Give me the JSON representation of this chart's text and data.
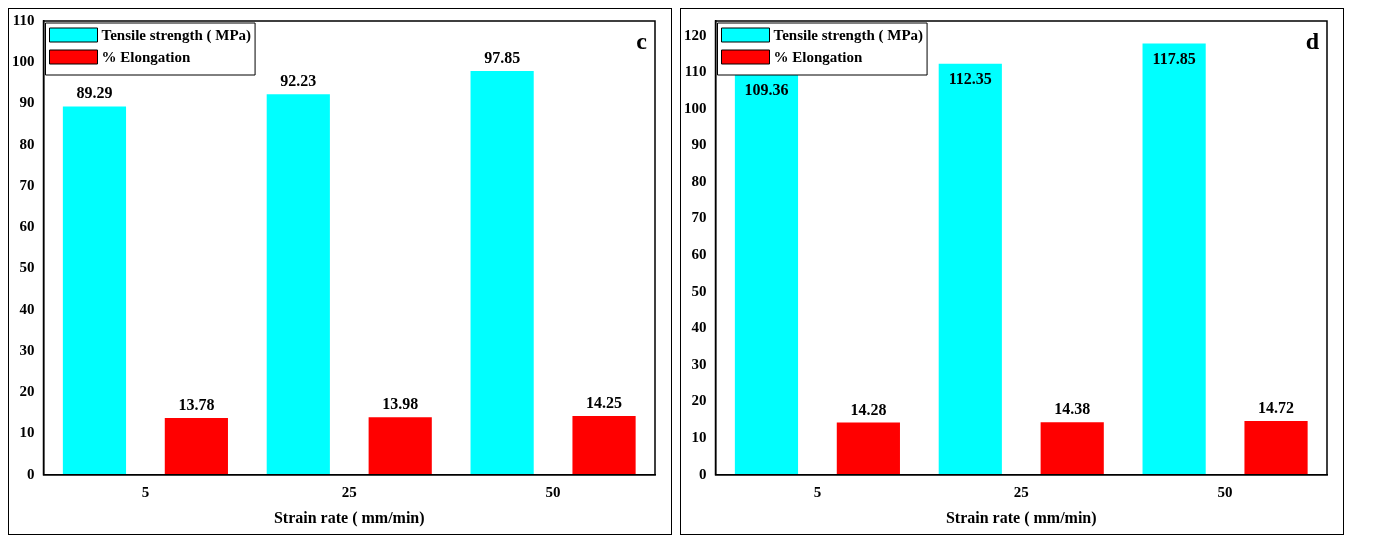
{
  "chart_data": [
    {
      "type": "bar",
      "categories": [
        "5",
        "25",
        "50"
      ],
      "xlabel": "Strain rate ( mm/min)",
      "annotations": [
        "c"
      ],
      "ylim": [
        0,
        110
      ],
      "yticks": [
        0,
        10,
        20,
        30,
        40,
        50,
        60,
        70,
        80,
        90,
        100,
        110
      ],
      "legend": "top left",
      "grid": false,
      "data_labels": true,
      "series": [
        {
          "name": "Tensile strength ( MPa)",
          "color": "#00ffff",
          "values": [
            89.29,
            92.23,
            97.85
          ]
        },
        {
          "name": "% Elongation",
          "color": "#ff0000",
          "values": [
            13.78,
            13.98,
            14.25
          ]
        }
      ]
    },
    {
      "type": "bar",
      "categories": [
        "5",
        "25",
        "50"
      ],
      "xlabel": "Strain rate ( mm/min)",
      "annotations": [
        "d"
      ],
      "ylim": [
        0,
        124
      ],
      "yticks": [
        0,
        10,
        20,
        30,
        40,
        50,
        60,
        70,
        80,
        90,
        100,
        110,
        120
      ],
      "legend": "top left",
      "grid": false,
      "data_labels": true,
      "series": [
        {
          "name": "Tensile strength ( MPa)",
          "color": "#00ffff",
          "values": [
            109.36,
            112.35,
            117.85
          ]
        },
        {
          "name": "% Elongation",
          "color": "#ff0000",
          "values": [
            14.28,
            14.38,
            14.72
          ]
        }
      ]
    }
  ]
}
